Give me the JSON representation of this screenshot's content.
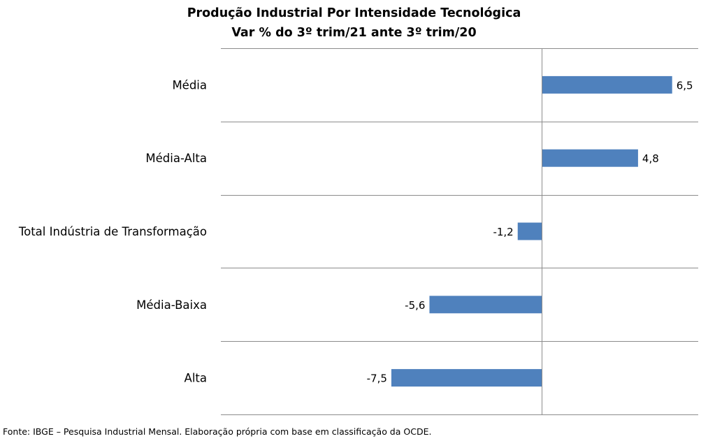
{
  "chart_data": {
    "type": "bar",
    "orientation": "horizontal",
    "title": "Produção Industrial Por Intensidade Tecnológica",
    "subtitle": "Var % do 3º trim/21 ante 3º trim/20",
    "categories": [
      "Média",
      "Média-Alta",
      "Total Indústria de Transformação",
      "Média-Baixa",
      "Alta"
    ],
    "values": [
      6.5,
      4.8,
      -1.2,
      -5.6,
      -7.5
    ],
    "value_labels": [
      "6,5",
      "4,8",
      "-1,2",
      "-5,6",
      "-7,5"
    ],
    "xlim": [
      -16.0,
      7.8
    ],
    "bar_color": "#4F81BD",
    "grid": true,
    "legend": "none",
    "source": "Fonte: IBGE – Pesquisa Industrial Mensal. Elaboração própria  com base em classificação da OCDE."
  }
}
